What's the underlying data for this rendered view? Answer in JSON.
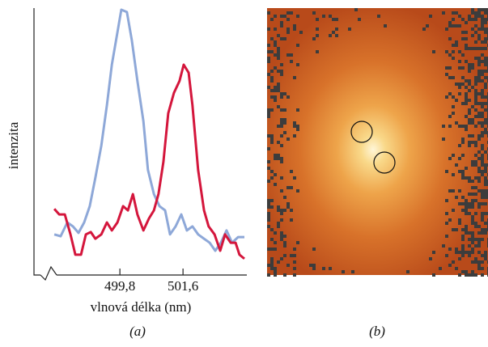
{
  "chart_data": {
    "type": "line",
    "ylabel": "intenzita",
    "xlabel": "vlnová délka (nm)",
    "xlim": [
      497.35,
      503.42
    ],
    "ylim": [
      0,
      100
    ],
    "xticks": [
      {
        "value": 499.8,
        "label": "499,8"
      },
      {
        "value": 501.6,
        "label": "501,6"
      }
    ],
    "series": [
      {
        "color": "#8ea8d8",
        "x": [
          497.93,
          498.11,
          498.3,
          498.46,
          498.62,
          498.78,
          498.94,
          499.1,
          499.27,
          499.43,
          499.57,
          499.73,
          499.84,
          500.0,
          500.14,
          500.3,
          500.47,
          500.6,
          500.77,
          500.93,
          501.09,
          501.23,
          501.39,
          501.55,
          501.71,
          501.87,
          502.03,
          502.2,
          502.36,
          502.52,
          502.68,
          502.84,
          503.0,
          503.17,
          503.35
        ],
        "values": [
          15.2,
          14.5,
          19.7,
          18.2,
          15.8,
          19.7,
          25.8,
          36.4,
          48.5,
          63.6,
          78.8,
          90.9,
          99.4,
          98.5,
          87.9,
          72.7,
          57.6,
          39.4,
          30.3,
          25.8,
          24.2,
          15.2,
          18.2,
          22.7,
          16.7,
          18.2,
          15.2,
          13.6,
          12.1,
          9.1,
          12.1,
          16.7,
          12.1,
          14.2,
          14.2
        ]
      },
      {
        "color": "#d4163c",
        "x": [
          497.93,
          498.07,
          498.23,
          498.39,
          498.53,
          498.69,
          498.83,
          498.97,
          499.1,
          499.27,
          499.43,
          499.57,
          499.73,
          499.89,
          500.03,
          500.17,
          500.3,
          500.47,
          500.63,
          500.77,
          500.9,
          501.04,
          501.18,
          501.34,
          501.5,
          501.62,
          501.76,
          501.87,
          502.03,
          502.2,
          502.33,
          502.5,
          502.66,
          502.8,
          502.96,
          503.1,
          503.21,
          503.35
        ],
        "values": [
          24.8,
          22.7,
          22.7,
          15.2,
          7.6,
          7.6,
          15.2,
          16.1,
          13.6,
          15.2,
          19.7,
          16.7,
          19.7,
          25.8,
          24.2,
          30.3,
          22.7,
          16.7,
          21.2,
          24.2,
          30.3,
          42.4,
          60.6,
          68.2,
          72.7,
          78.8,
          75.8,
          63.6,
          39.4,
          24.2,
          18.2,
          15.2,
          9.1,
          15.2,
          12.1,
          12.1,
          7.6,
          6.1
        ]
      }
    ]
  },
  "panel_labels": [
    "(a)",
    "(b)"
  ]
}
